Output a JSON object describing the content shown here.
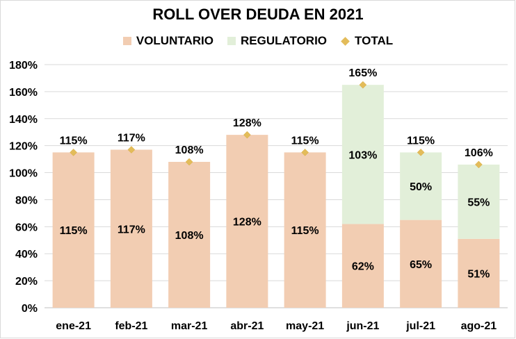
{
  "chart_data": {
    "type": "bar",
    "stacked": true,
    "title": "ROLL OVER DEUDA EN 2021",
    "categories": [
      "ene-21",
      "feb-21",
      "mar-21",
      "abr-21",
      "may-21",
      "jun-21",
      "jul-21",
      "ago-21"
    ],
    "series": [
      {
        "name": "VOLUNTARIO",
        "kind": "bar",
        "color": "#f2cdb2",
        "values": [
          115,
          117,
          108,
          128,
          115,
          62,
          65,
          51
        ],
        "labels": [
          "115%",
          "117%",
          "108%",
          "128%",
          "115%",
          "62%",
          "65%",
          "51%"
        ]
      },
      {
        "name": "REGULATORIO",
        "kind": "bar",
        "color": "#e2efd9",
        "values": [
          0,
          0,
          0,
          0,
          0,
          103,
          50,
          55
        ],
        "labels": [
          "",
          "",
          "",
          "",
          "",
          "103%",
          "50%",
          "55%"
        ]
      },
      {
        "name": "TOTAL",
        "kind": "marker",
        "marker": "diamond",
        "color": "#e3bc5a",
        "values": [
          115,
          117,
          108,
          128,
          115,
          165,
          115,
          106
        ],
        "labels": [
          "115%",
          "117%",
          "108%",
          "128%",
          "115%",
          "165%",
          "115%",
          "106%"
        ]
      }
    ],
    "ylim": [
      0,
      180
    ],
    "yticks": [
      0,
      20,
      40,
      60,
      80,
      100,
      120,
      140,
      160,
      180
    ],
    "ytick_labels": [
      "0%",
      "20%",
      "40%",
      "60%",
      "80%",
      "100%",
      "120%",
      "140%",
      "160%",
      "180%"
    ],
    "grid": true,
    "legend_position": "top-center",
    "gridline_color": "#d9d9d9",
    "axis_color": "#bfbfbf"
  }
}
